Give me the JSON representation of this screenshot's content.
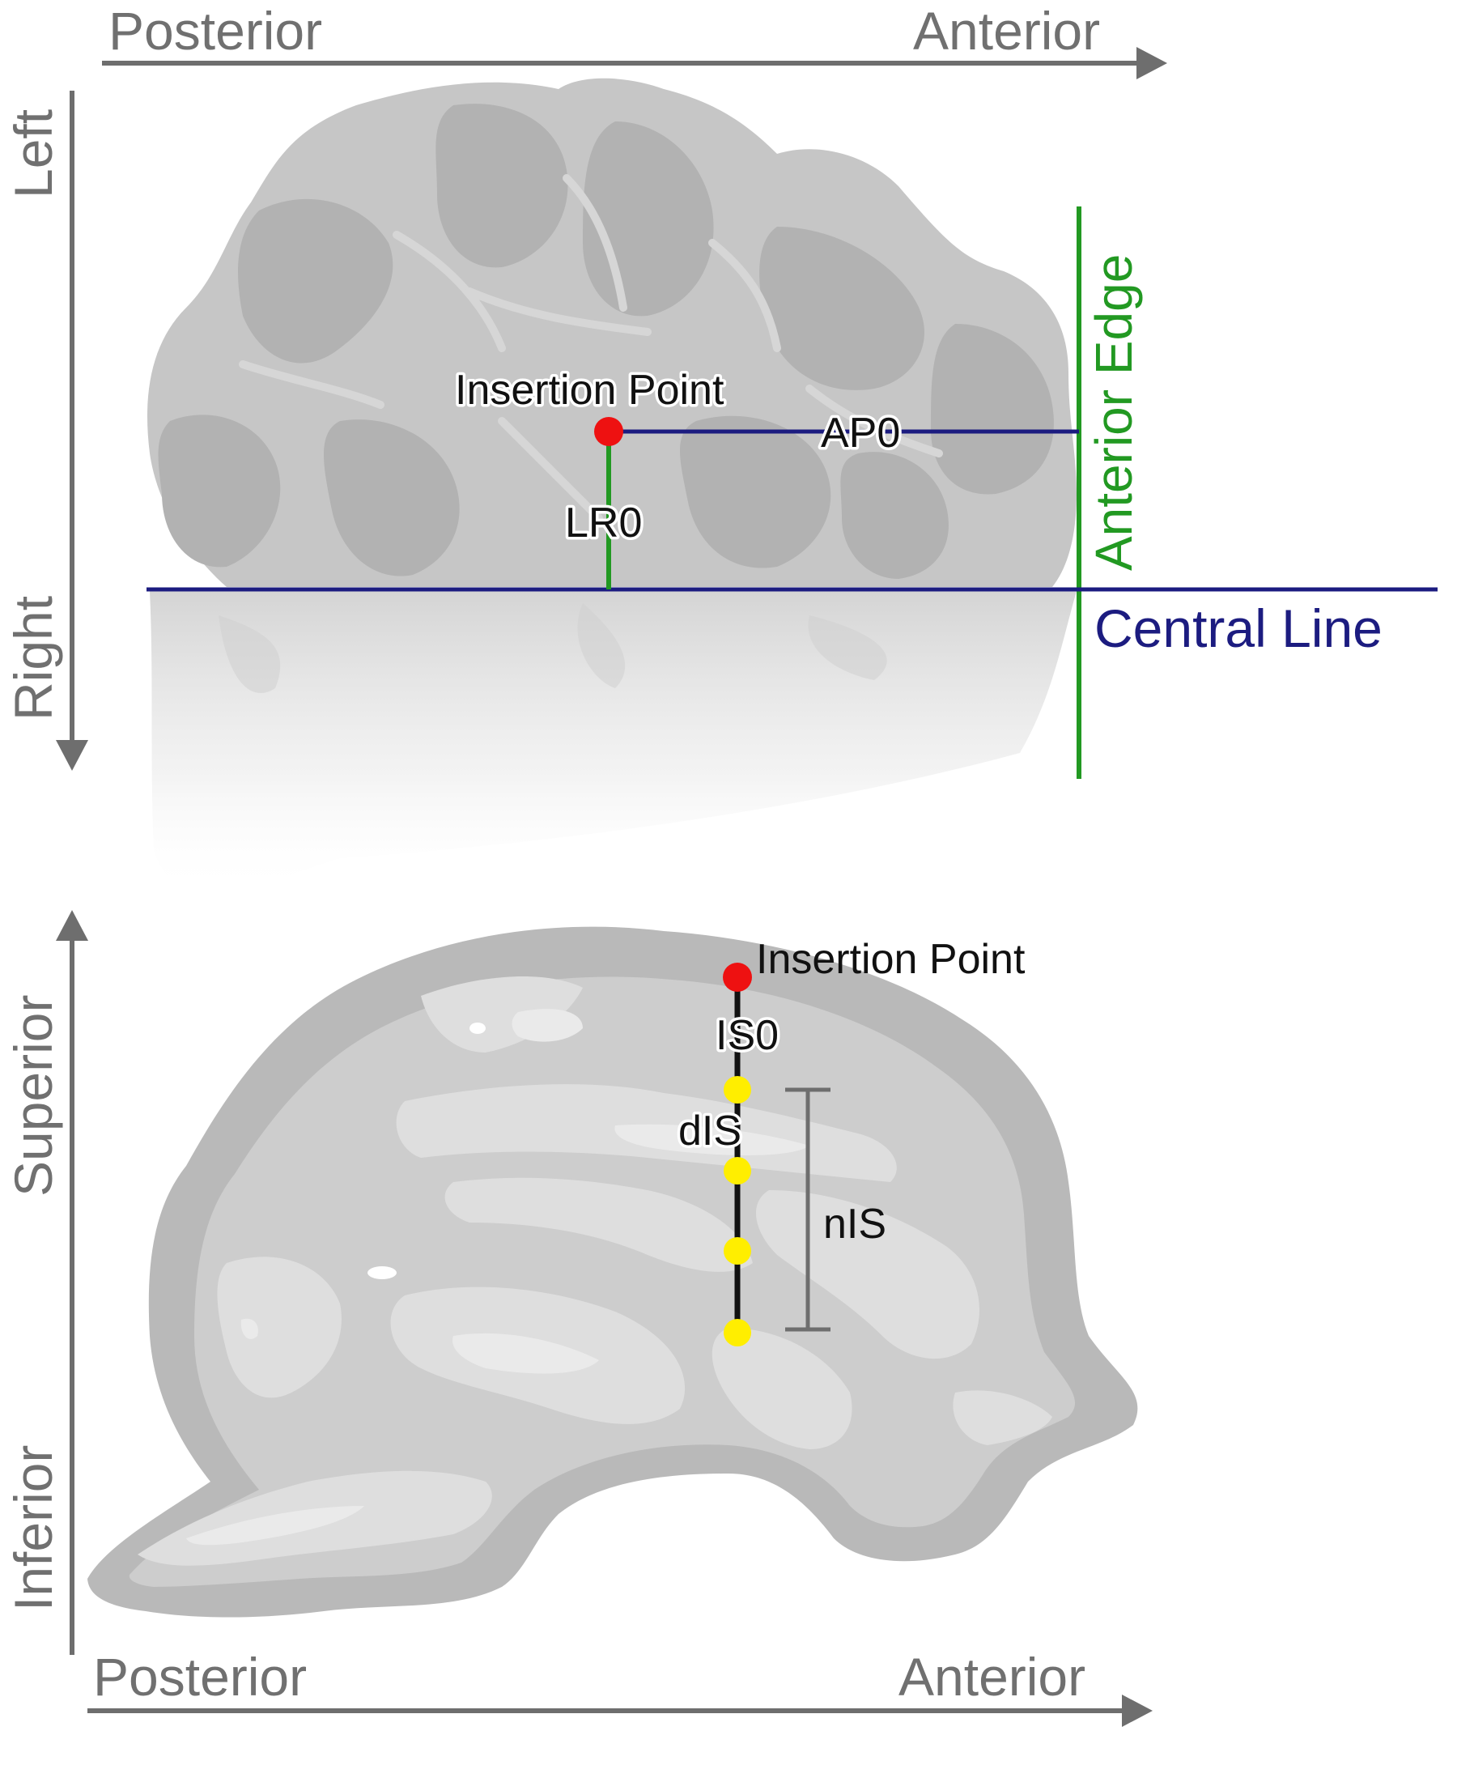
{
  "top_view": {
    "axis_x": {
      "start_label": "Posterior",
      "end_label": "Anterior"
    },
    "axis_y": {
      "start_label": "Left",
      "end_label": "Right"
    },
    "insertion_point_label": "Insertion Point",
    "ap_label": "AP0",
    "lr_label": "LR0",
    "anterior_edge_label": "Anterior Edge",
    "central_line_label": "Central Line"
  },
  "side_view": {
    "axis_y": {
      "top_label": "Superior",
      "bottom_label": "Inferior"
    },
    "axis_x": {
      "start_label": "Posterior",
      "end_label": "Anterior"
    },
    "insertion_point_label": "Insertion Point",
    "is_label": "IS0",
    "dis_label": "dIS",
    "nis_label": "nIS",
    "electrode_contacts": 4
  },
  "colors": {
    "axis": "#6e6e6e",
    "insertion_point": "#ee1111",
    "contacts": "#ffee00",
    "anterior_edge": "#229922",
    "central_line": "#1c1c80",
    "brain": "#c6c6c6",
    "brain_dark": "#b0b0b0",
    "brain_light": "#dadada"
  }
}
